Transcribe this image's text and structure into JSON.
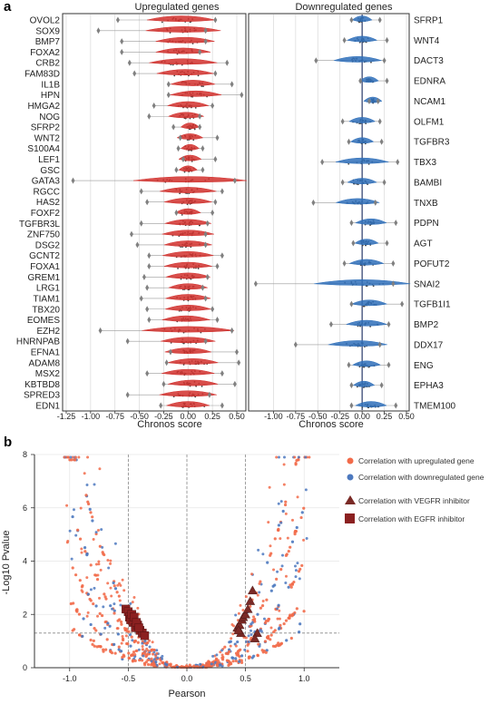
{
  "panel_a_letter": "a",
  "panel_b_letter": "b",
  "colors": {
    "up": "#d2302d",
    "down": "#2e6fba",
    "up_point": "#f26b4a",
    "down_point": "#4d79bf",
    "vegf": "#7a2a26",
    "egfr": "#8b2020",
    "outlier": "#808080",
    "frame": "#333333"
  },
  "chart_data": [
    {
      "type": "violin",
      "title": "Upregulated genes",
      "xlabel": "Chronos score",
      "xlim": [
        -1.25,
        0.5
      ],
      "xticks": [
        "-1.25",
        "-1.00",
        "-0.75",
        "-0.50",
        "-0.25",
        "0.00",
        "0.25",
        "0.50"
      ],
      "grid": true,
      "categories": [
        "OVOL2",
        "SOX9",
        "BMP7",
        "FOXA2",
        "CRB2",
        "FAM83D",
        "IL1B",
        "HPN",
        "HMGA2",
        "NOG",
        "SFRP2",
        "WNT2",
        "S100A4",
        "LEF1",
        "GSC",
        "GATA3",
        "RGCC",
        "HAS2",
        "FOXF2",
        "TGFBR3L",
        "ZNF750",
        "DSG2",
        "GCNT2",
        "FOXA1",
        "GREM1",
        "LRG1",
        "TIAM1",
        "TBX20",
        "EOMES",
        "EZH2",
        "HNRNPAB",
        "EFNA1",
        "ADAM8",
        "MSX2",
        "KBTBD8",
        "SPRED3",
        "EDN1"
      ],
      "series": [
        {
          "values": [
            {
              "center": -0.07,
              "min": -0.72,
              "max": 0.28
            },
            {
              "center": -0.05,
              "min": -0.92,
              "max": 0.18
            },
            {
              "center": -0.03,
              "min": -0.68,
              "max": 0.18
            },
            {
              "center": -0.05,
              "min": -0.68,
              "max": 0.12
            },
            {
              "center": -0.05,
              "min": -0.6,
              "max": 0.4
            },
            {
              "center": -0.03,
              "min": -0.55,
              "max": 0.28
            },
            {
              "center": 0.05,
              "min": -0.2,
              "max": 0.45
            },
            {
              "center": 0.08,
              "min": -0.2,
              "max": 0.55
            },
            {
              "center": 0.0,
              "min": -0.35,
              "max": 0.25
            },
            {
              "center": -0.02,
              "min": -0.4,
              "max": 0.12
            },
            {
              "center": 0.02,
              "min": -0.15,
              "max": 0.12
            },
            {
              "center": 0.02,
              "min": -0.08,
              "max": 0.3
            },
            {
              "center": 0.02,
              "min": -0.1,
              "max": 0.15
            },
            {
              "center": 0.02,
              "min": -0.05,
              "max": 0.28
            },
            {
              "center": 0.0,
              "min": -0.12,
              "max": 0.15
            },
            {
              "center": 0.02,
              "min": -1.18,
              "max": 0.48
            },
            {
              "center": 0.0,
              "min": -0.48,
              "max": 0.35
            },
            {
              "center": 0.0,
              "min": -0.42,
              "max": 0.28
            },
            {
              "center": 0.0,
              "min": -0.12,
              "max": 0.25
            },
            {
              "center": 0.0,
              "min": -0.48,
              "max": 0.2
            },
            {
              "center": 0.0,
              "min": -0.58,
              "max": 0.18
            },
            {
              "center": 0.0,
              "min": -0.52,
              "max": 0.18
            },
            {
              "center": 0.0,
              "min": -0.4,
              "max": 0.35
            },
            {
              "center": 0.0,
              "min": -0.4,
              "max": 0.3
            },
            {
              "center": 0.0,
              "min": -0.45,
              "max": 0.2
            },
            {
              "center": 0.0,
              "min": -0.42,
              "max": 0.15
            },
            {
              "center": 0.0,
              "min": -0.48,
              "max": 0.18
            },
            {
              "center": 0.0,
              "min": -0.42,
              "max": 0.25
            },
            {
              "center": -0.02,
              "min": -0.4,
              "max": 0.3
            },
            {
              "center": 0.0,
              "min": -0.9,
              "max": 0.45
            },
            {
              "center": 0.0,
              "min": -0.62,
              "max": 0.18
            },
            {
              "center": 0.0,
              "min": -0.18,
              "max": 0.5
            },
            {
              "center": 0.05,
              "min": -0.22,
              "max": 0.52
            },
            {
              "center": 0.0,
              "min": -0.42,
              "max": 0.35
            },
            {
              "center": 0.05,
              "min": -0.25,
              "max": 0.48
            },
            {
              "center": 0.0,
              "min": -0.62,
              "max": 0.22
            },
            {
              "center": 0.0,
              "min": -0.28,
              "max": 0.35
            }
          ]
        }
      ]
    },
    {
      "type": "violin",
      "title": "Downregulated genes",
      "xlabel": "Chronos score",
      "xlim": [
        -1.25,
        0.5
      ],
      "xticks": [
        "-1.00",
        "-0.75",
        "-0.50",
        "-0.25",
        "0.00",
        "0.25",
        "0.50"
      ],
      "grid": true,
      "categories": [
        "SFRP1",
        "WNT4",
        "DACT3",
        "EDNRA",
        "NCAM1",
        "OLFM1",
        "TGFBR3",
        "TBX3",
        "BAMBI",
        "TNXB",
        "PDPN",
        "AGT",
        "POFUT2",
        "SNAI2",
        "TGFB1I1",
        "BMP2",
        "DDX17",
        "ENG",
        "EPHA3",
        "TMEM100"
      ],
      "series": [
        {
          "values": [
            {
              "center": 0.0,
              "min": -0.12,
              "max": 0.2
            },
            {
              "center": 0.0,
              "min": -0.2,
              "max": 0.28
            },
            {
              "center": -0.05,
              "min": -0.52,
              "max": 0.25
            },
            {
              "center": 0.08,
              "min": -0.02,
              "max": 0.28
            },
            {
              "center": 0.12,
              "min": 0.08,
              "max": 0.18
            },
            {
              "center": 0.0,
              "min": -0.22,
              "max": 0.2
            },
            {
              "center": 0.0,
              "min": -0.15,
              "max": 0.22
            },
            {
              "center": 0.0,
              "min": -0.45,
              "max": 0.4
            },
            {
              "center": 0.0,
              "min": -0.22,
              "max": 0.25
            },
            {
              "center": -0.05,
              "min": -0.55,
              "max": 0.15
            },
            {
              "center": 0.1,
              "min": -0.12,
              "max": 0.38
            },
            {
              "center": 0.05,
              "min": -0.1,
              "max": 0.28
            },
            {
              "center": 0.05,
              "min": -0.2,
              "max": 0.35
            },
            {
              "center": 0.0,
              "min": -1.2,
              "max": 0.35
            },
            {
              "center": 0.08,
              "min": -0.12,
              "max": 0.45
            },
            {
              "center": 0.05,
              "min": -0.35,
              "max": 0.3
            },
            {
              "center": -0.05,
              "min": -0.75,
              "max": 0.2
            },
            {
              "center": 0.05,
              "min": -0.15,
              "max": 0.3
            },
            {
              "center": 0.02,
              "min": -0.12,
              "max": 0.22
            },
            {
              "center": 0.1,
              "min": -0.12,
              "max": 0.38
            }
          ]
        }
      ]
    },
    {
      "type": "scatter",
      "xlabel": "Pearson",
      "ylabel": "-Log10 Pvalue",
      "xlim": [
        -1.3,
        1.3
      ],
      "ylim": [
        0,
        8
      ],
      "xticks": [
        "-1.0",
        "-0.5",
        "0.0",
        "0.5",
        "1.0"
      ],
      "yticks": [
        "0",
        "2",
        "4",
        "6",
        "8"
      ],
      "vlines": [
        -0.5,
        0.0,
        0.5
      ],
      "hline": 1.3,
      "legend_position": "right",
      "series": [
        {
          "name": "Correlation with upregulated gene"
        },
        {
          "name": "Correlation with downregulated gene"
        },
        {
          "name": "Correlation with VEGFR inhibitor",
          "points": [
            [
              0.43,
              1.5
            ],
            [
              0.45,
              1.6
            ],
            [
              0.47,
              1.8
            ],
            [
              0.48,
              1.9
            ],
            [
              0.5,
              2.0
            ],
            [
              0.52,
              2.2
            ],
            [
              0.54,
              2.5
            ],
            [
              0.56,
              2.9
            ],
            [
              0.6,
              1.3
            ],
            [
              0.58,
              1.1
            ],
            [
              0.46,
              1.3
            ],
            [
              0.44,
              1.4
            ]
          ]
        },
        {
          "name": "Correlation with EGFR inhibitor",
          "points": [
            [
              -0.52,
              2.2
            ],
            [
              -0.5,
              2.1
            ],
            [
              -0.49,
              1.9
            ],
            [
              -0.48,
              1.8
            ],
            [
              -0.46,
              1.7
            ],
            [
              -0.44,
              1.5
            ],
            [
              -0.42,
              1.6
            ],
            [
              -0.4,
              1.4
            ],
            [
              -0.38,
              1.3
            ],
            [
              -0.36,
              1.2
            ],
            [
              -0.47,
              2.0
            ],
            [
              -0.45,
              1.9
            ],
            [
              -0.43,
              1.7
            ],
            [
              -0.41,
              1.5
            ]
          ]
        }
      ]
    }
  ]
}
